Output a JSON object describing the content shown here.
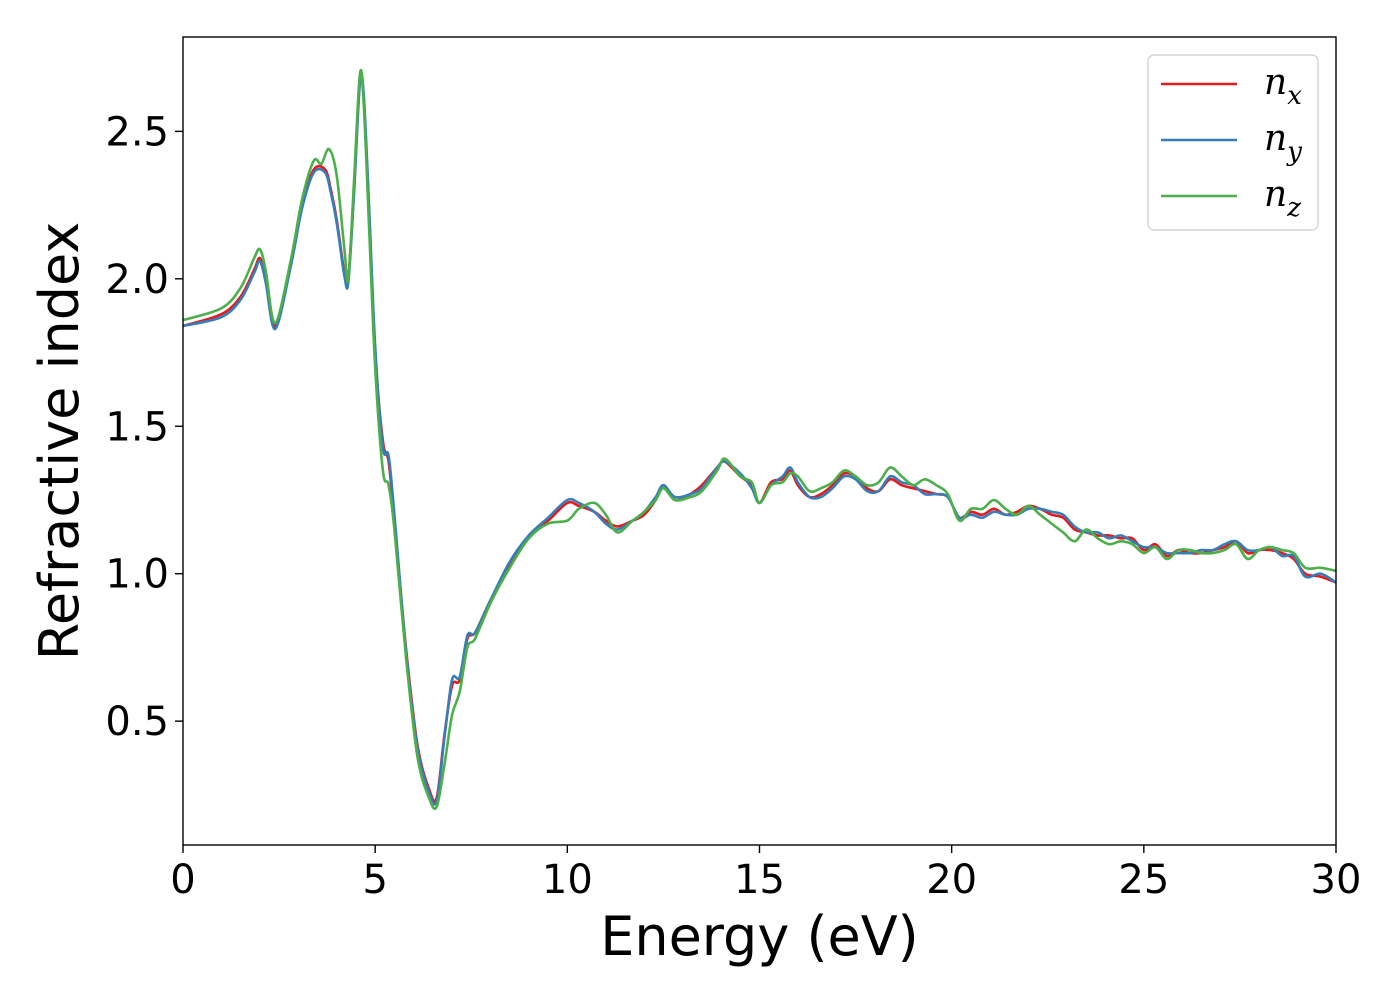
{
  "chart_data": {
    "type": "line",
    "title": "",
    "xlabel": "Energy (eV)",
    "ylabel": "Refractive index",
    "xlim": [
      0,
      30
    ],
    "ylim": [
      0.08,
      2.82
    ],
    "xticks": [
      0,
      5,
      10,
      15,
      20,
      25,
      30
    ],
    "xtick_labels": [
      "0",
      "5",
      "10",
      "15",
      "20",
      "25",
      "30"
    ],
    "yticks": [
      0.5,
      1.0,
      1.5,
      2.0,
      2.5
    ],
    "ytick_labels": [
      "0.5",
      "1.0",
      "1.5",
      "2.0",
      "2.5"
    ],
    "grid": false,
    "legend_position": "top-right",
    "series": [
      {
        "name": "n_x",
        "label_main": "n",
        "label_sub": "x",
        "color": "#e41a1c",
        "x": [
          0,
          1,
          1.5,
          1.85,
          2.0,
          2.15,
          2.4,
          2.8,
          3.1,
          3.4,
          3.7,
          3.85,
          4.0,
          4.2,
          4.3,
          4.45,
          4.6,
          4.7,
          4.85,
          5.0,
          5.2,
          5.35,
          5.5,
          5.8,
          6.1,
          6.4,
          6.6,
          6.8,
          7.0,
          7.2,
          7.4,
          7.6,
          8.0,
          8.5,
          9.0,
          9.5,
          10.0,
          10.3,
          10.7,
          11.0,
          11.3,
          11.7,
          12.0,
          12.3,
          12.5,
          12.8,
          13.2,
          13.5,
          13.9,
          14.1,
          14.5,
          14.8,
          15.0,
          15.3,
          15.6,
          15.8,
          16.0,
          16.3,
          16.6,
          16.9,
          17.2,
          17.5,
          17.8,
          18.1,
          18.4,
          18.7,
          19.0,
          19.3,
          19.6,
          19.9,
          20.2,
          20.5,
          20.8,
          21.1,
          21.4,
          21.7,
          22.0,
          22.3,
          22.6,
          22.9,
          23.2,
          23.5,
          23.8,
          24.1,
          24.4,
          24.7,
          25.0,
          25.3,
          25.6,
          25.9,
          26.2,
          26.5,
          26.8,
          27.1,
          27.4,
          27.7,
          28.0,
          28.3,
          28.6,
          28.9,
          29.2,
          29.6,
          30.0
        ],
        "y": [
          1.84,
          1.88,
          1.94,
          2.03,
          2.07,
          2.0,
          1.84,
          2.05,
          2.25,
          2.37,
          2.37,
          2.3,
          2.2,
          2.02,
          2.0,
          2.3,
          2.67,
          2.62,
          2.2,
          1.75,
          1.45,
          1.38,
          1.18,
          0.75,
          0.42,
          0.27,
          0.24,
          0.45,
          0.62,
          0.64,
          0.78,
          0.8,
          0.91,
          1.03,
          1.13,
          1.18,
          1.24,
          1.23,
          1.21,
          1.18,
          1.16,
          1.18,
          1.2,
          1.25,
          1.3,
          1.25,
          1.27,
          1.3,
          1.36,
          1.38,
          1.33,
          1.3,
          1.24,
          1.31,
          1.32,
          1.35,
          1.3,
          1.26,
          1.27,
          1.3,
          1.34,
          1.33,
          1.29,
          1.28,
          1.32,
          1.3,
          1.29,
          1.28,
          1.27,
          1.26,
          1.19,
          1.21,
          1.2,
          1.22,
          1.2,
          1.21,
          1.23,
          1.22,
          1.2,
          1.19,
          1.15,
          1.14,
          1.13,
          1.13,
          1.12,
          1.12,
          1.08,
          1.1,
          1.06,
          1.08,
          1.07,
          1.07,
          1.08,
          1.09,
          1.11,
          1.07,
          1.08,
          1.08,
          1.07,
          1.05,
          1.0,
          0.99,
          0.97
        ]
      },
      {
        "name": "n_y",
        "label_main": "n",
        "label_sub": "y",
        "color": "#377eb8",
        "x": [
          0,
          1,
          1.5,
          1.85,
          2.0,
          2.15,
          2.4,
          2.8,
          3.1,
          3.4,
          3.7,
          3.85,
          4.0,
          4.2,
          4.3,
          4.45,
          4.6,
          4.7,
          4.85,
          5.0,
          5.2,
          5.35,
          5.5,
          5.8,
          6.1,
          6.4,
          6.6,
          6.8,
          7.0,
          7.2,
          7.4,
          7.6,
          8.0,
          8.5,
          9.0,
          9.5,
          10.0,
          10.3,
          10.7,
          11.0,
          11.3,
          11.7,
          12.0,
          12.3,
          12.5,
          12.8,
          13.2,
          13.5,
          13.9,
          14.1,
          14.5,
          14.8,
          15.0,
          15.3,
          15.6,
          15.8,
          16.0,
          16.3,
          16.6,
          16.9,
          17.2,
          17.5,
          17.8,
          18.1,
          18.4,
          18.7,
          19.0,
          19.3,
          19.6,
          19.9,
          20.2,
          20.5,
          20.8,
          21.1,
          21.4,
          21.7,
          22.0,
          22.3,
          22.6,
          22.9,
          23.2,
          23.5,
          23.8,
          24.1,
          24.4,
          24.7,
          25.0,
          25.3,
          25.6,
          25.9,
          26.2,
          26.5,
          26.8,
          27.1,
          27.4,
          27.7,
          28.0,
          28.3,
          28.6,
          28.9,
          29.2,
          29.6,
          30.0
        ],
        "y": [
          1.84,
          1.87,
          1.93,
          2.02,
          2.06,
          1.99,
          1.83,
          2.04,
          2.24,
          2.36,
          2.36,
          2.29,
          2.19,
          2.01,
          1.99,
          2.29,
          2.66,
          2.63,
          2.22,
          1.77,
          1.43,
          1.4,
          1.2,
          0.74,
          0.41,
          0.26,
          0.23,
          0.44,
          0.64,
          0.65,
          0.79,
          0.8,
          0.91,
          1.04,
          1.13,
          1.19,
          1.25,
          1.24,
          1.21,
          1.17,
          1.15,
          1.18,
          1.21,
          1.26,
          1.3,
          1.26,
          1.27,
          1.29,
          1.36,
          1.38,
          1.34,
          1.29,
          1.24,
          1.3,
          1.33,
          1.36,
          1.31,
          1.26,
          1.26,
          1.29,
          1.33,
          1.32,
          1.28,
          1.28,
          1.33,
          1.31,
          1.3,
          1.27,
          1.27,
          1.26,
          1.19,
          1.2,
          1.19,
          1.21,
          1.2,
          1.2,
          1.22,
          1.22,
          1.21,
          1.2,
          1.16,
          1.14,
          1.14,
          1.12,
          1.13,
          1.11,
          1.09,
          1.09,
          1.07,
          1.07,
          1.07,
          1.08,
          1.08,
          1.1,
          1.11,
          1.08,
          1.08,
          1.09,
          1.06,
          1.06,
          0.99,
          1.0,
          0.97
        ]
      },
      {
        "name": "n_z",
        "label_main": "n",
        "label_sub": "z",
        "color": "#4daf4a",
        "x": [
          0,
          1,
          1.5,
          1.85,
          2.0,
          2.15,
          2.4,
          2.8,
          3.1,
          3.4,
          3.6,
          3.8,
          4.0,
          4.2,
          4.3,
          4.45,
          4.6,
          4.7,
          4.85,
          5.0,
          5.2,
          5.35,
          5.5,
          5.8,
          6.1,
          6.4,
          6.6,
          6.8,
          7.0,
          7.2,
          7.4,
          7.6,
          8.0,
          8.5,
          9.0,
          9.5,
          10.0,
          10.3,
          10.7,
          11.0,
          11.3,
          11.7,
          12.0,
          12.3,
          12.5,
          12.8,
          13.2,
          13.5,
          13.9,
          14.1,
          14.5,
          14.8,
          15.0,
          15.3,
          15.6,
          15.8,
          16.0,
          16.3,
          16.6,
          16.9,
          17.2,
          17.5,
          17.8,
          18.1,
          18.4,
          18.7,
          19.0,
          19.3,
          19.6,
          19.9,
          20.2,
          20.5,
          20.8,
          21.1,
          21.4,
          21.7,
          22.0,
          22.3,
          22.6,
          22.9,
          23.2,
          23.5,
          23.8,
          24.1,
          24.4,
          24.7,
          25.0,
          25.3,
          25.6,
          25.9,
          26.2,
          26.5,
          26.8,
          27.1,
          27.4,
          27.7,
          28.0,
          28.3,
          28.6,
          28.9,
          29.2,
          29.6,
          30.0
        ],
        "y": [
          1.86,
          1.9,
          1.97,
          2.07,
          2.1,
          2.03,
          1.85,
          2.06,
          2.27,
          2.4,
          2.39,
          2.44,
          2.35,
          2.1,
          2.0,
          2.33,
          2.69,
          2.6,
          2.15,
          1.7,
          1.35,
          1.3,
          1.15,
          0.72,
          0.38,
          0.24,
          0.21,
          0.35,
          0.52,
          0.6,
          0.75,
          0.78,
          0.9,
          1.02,
          1.12,
          1.17,
          1.18,
          1.22,
          1.24,
          1.2,
          1.14,
          1.18,
          1.21,
          1.25,
          1.29,
          1.25,
          1.26,
          1.28,
          1.35,
          1.39,
          1.33,
          1.31,
          1.24,
          1.3,
          1.31,
          1.34,
          1.33,
          1.28,
          1.29,
          1.31,
          1.35,
          1.33,
          1.3,
          1.31,
          1.36,
          1.33,
          1.3,
          1.32,
          1.3,
          1.27,
          1.18,
          1.22,
          1.22,
          1.25,
          1.22,
          1.2,
          1.23,
          1.2,
          1.17,
          1.14,
          1.11,
          1.15,
          1.12,
          1.1,
          1.11,
          1.1,
          1.07,
          1.09,
          1.05,
          1.08,
          1.08,
          1.07,
          1.07,
          1.08,
          1.1,
          1.05,
          1.08,
          1.09,
          1.08,
          1.07,
          1.02,
          1.02,
          1.01
        ]
      }
    ]
  }
}
